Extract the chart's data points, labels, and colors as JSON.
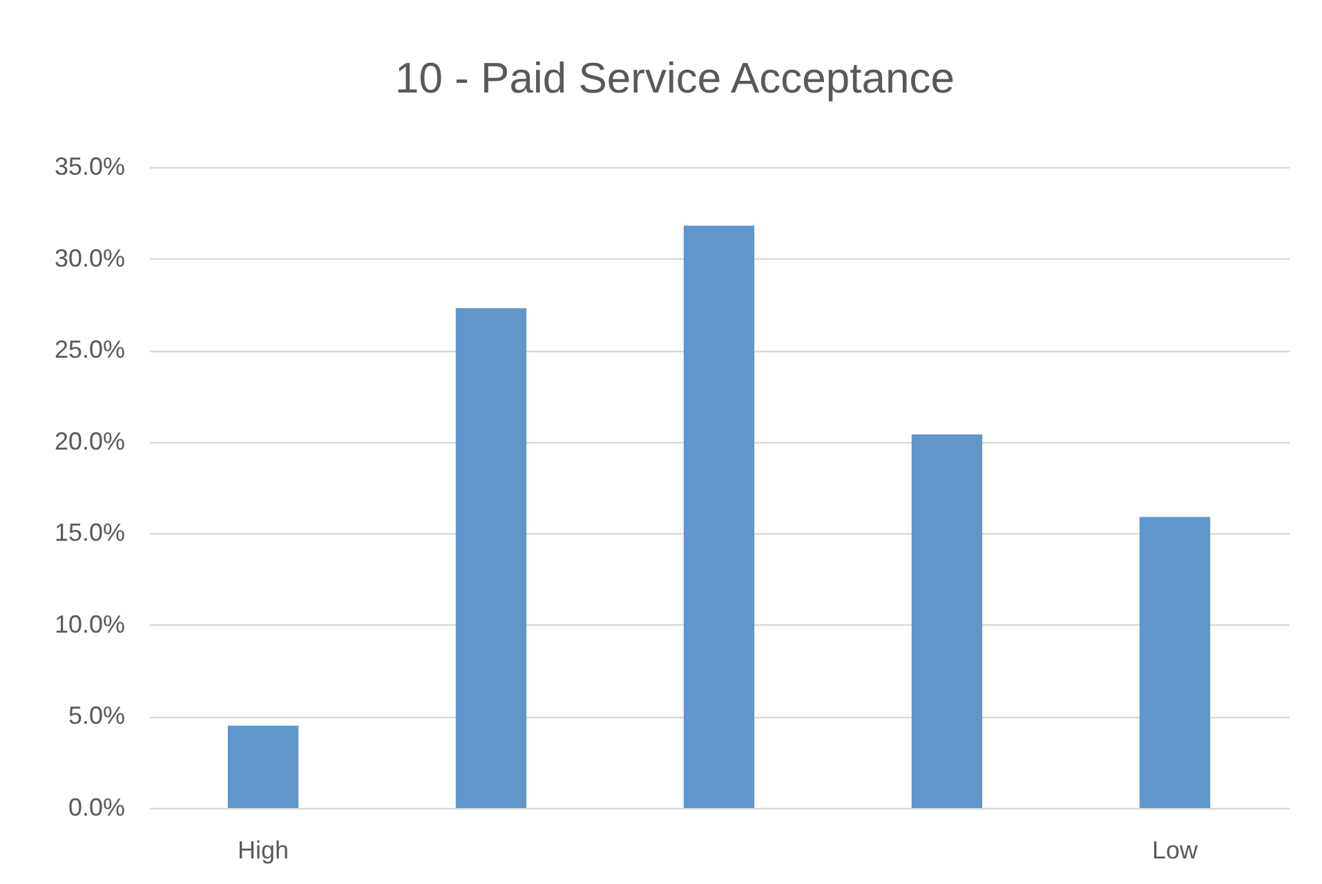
{
  "chart_data": {
    "type": "bar",
    "title": "10 - Paid Service Acceptance",
    "categories": [
      "High",
      null,
      null,
      null,
      "Low"
    ],
    "values": [
      4.5,
      27.3,
      31.8,
      20.4,
      15.9
    ],
    "color": "#6096c9",
    "ylim": [
      0,
      35
    ],
    "yticks": [
      {
        "value": 0,
        "label": "0.0%"
      },
      {
        "value": 5,
        "label": "5.0%"
      },
      {
        "value": 10,
        "label": "10.0%"
      },
      {
        "value": 15,
        "label": "15.0%"
      },
      {
        "value": 20,
        "label": "20.0%"
      },
      {
        "value": 25,
        "label": "25.0%"
      },
      {
        "value": 30,
        "label": "30.0%"
      },
      {
        "value": 35,
        "label": "35.0%"
      }
    ],
    "grid": "y"
  }
}
